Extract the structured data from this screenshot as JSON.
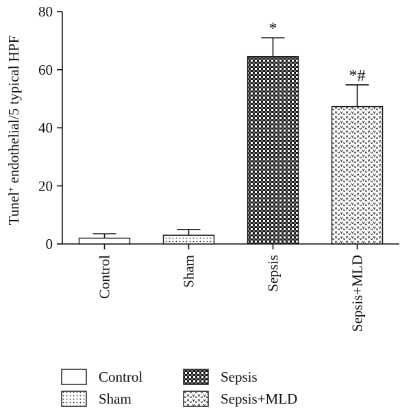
{
  "chart_data": {
    "type": "bar",
    "title": "",
    "xlabel": "",
    "ylabel": "Tunel",
    "ylabel_superscript": "+",
    "ylabel_rest": " endothelial/5 typical HPF",
    "ylim": [
      0,
      80
    ],
    "yticks": [
      "0",
      "20",
      "40",
      "60",
      "80"
    ],
    "categories": [
      "Control",
      "Sham",
      "Sepsis",
      "Sepsis+MLD"
    ],
    "values": [
      2,
      3,
      64.5,
      47.3
    ],
    "errors": [
      1.5,
      2,
      6.5,
      7.5
    ],
    "annotations": [
      "",
      "",
      "*",
      "*#"
    ],
    "patterns": [
      "plain",
      "dots",
      "checker",
      "chevron"
    ],
    "legend": {
      "position": "bottom",
      "entries": [
        {
          "label": "Control",
          "pattern": "plain"
        },
        {
          "label": "Sepsis",
          "pattern": "checker"
        },
        {
          "label": "Sham",
          "pattern": "dots"
        },
        {
          "label": "Sepsis+MLD",
          "pattern": "chevron"
        }
      ]
    },
    "grid": false
  }
}
